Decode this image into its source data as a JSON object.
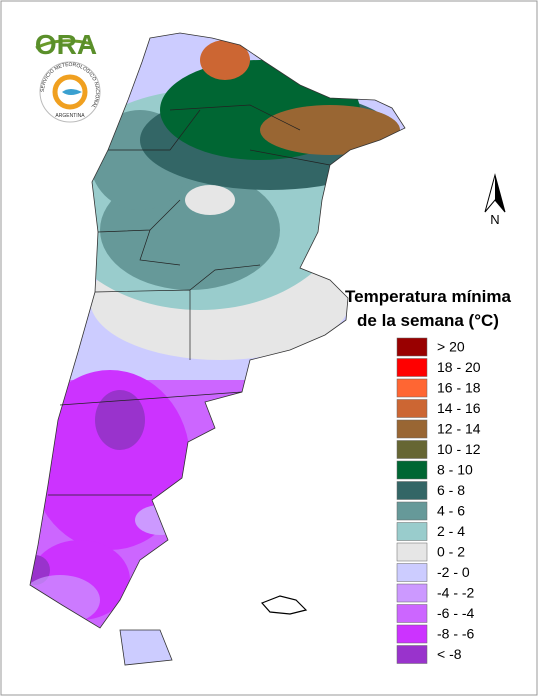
{
  "logo": {
    "brand": "ORA",
    "ring_text": "SERVICIO METEOROLOGICO NACIONAL",
    "country": "ARGENTINA"
  },
  "legend": {
    "title_lines": [
      "Temperatura mínima",
      "de la semana (°C)"
    ],
    "items": [
      {
        "label": "> 20",
        "color": "#990000"
      },
      {
        "label": "18 - 20",
        "color": "#ff0000"
      },
      {
        "label": "16 - 18",
        "color": "#ff6633"
      },
      {
        "label": "14 - 16",
        "color": "#cc6633"
      },
      {
        "label": "12 - 14",
        "color": "#996633"
      },
      {
        "label": "10 - 12",
        "color": "#666633"
      },
      {
        "label": "8 - 10",
        "color": "#006633"
      },
      {
        "label": "6 - 8",
        "color": "#336666"
      },
      {
        "label": "4 - 6",
        "color": "#669999"
      },
      {
        "label": "2 - 4",
        "color": "#99cccc"
      },
      {
        "label": "0 - 2",
        "color": "#e6e6e6"
      },
      {
        "label": "-2 - 0",
        "color": "#ccccff"
      },
      {
        "label": "-4 - -2",
        "color": "#cc99ff"
      },
      {
        "label": "-6 - -4",
        "color": "#cc66ff"
      },
      {
        "label": "-8 - -6",
        "color": "#cc33ff"
      },
      {
        "label": "< -8",
        "color": "#9933cc"
      }
    ]
  },
  "north_label": "N"
}
